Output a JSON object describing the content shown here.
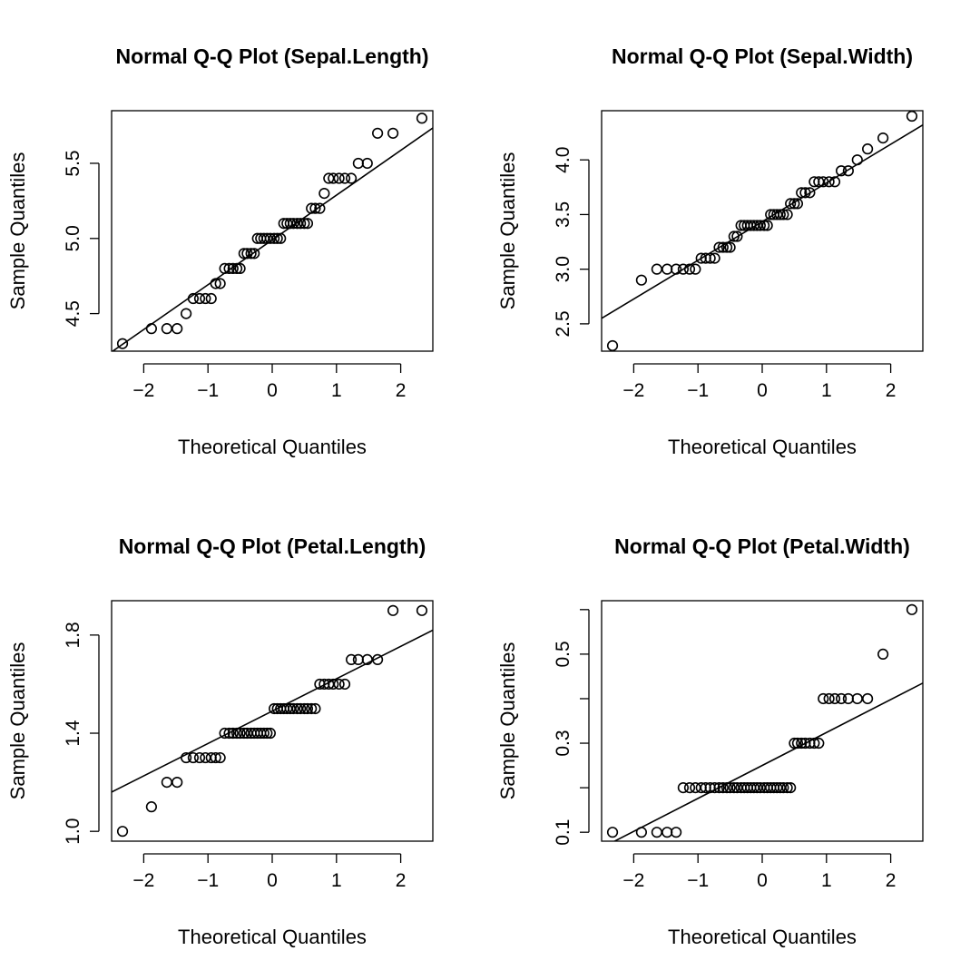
{
  "chart_data": [
    {
      "type": "scatter",
      "title": "Normal Q-Q Plot (Sepal.Length)",
      "xlabel": "Theoretical Quantiles",
      "ylabel": "Sample Quantiles",
      "xlim": [
        -2.5,
        2.5
      ],
      "ylim": [
        4.25,
        5.85
      ],
      "xticks": [
        -2,
        -1,
        0,
        1,
        2
      ],
      "xtick_labels": [
        "−2",
        "−1",
        "0",
        "1",
        "2"
      ],
      "yticks": [
        4.5,
        5.0,
        5.5
      ],
      "ytick_labels": [
        "4.5",
        "5.0",
        "5.5"
      ],
      "series": [
        {
          "x": [
            -2.33,
            -1.88,
            -1.64,
            -1.48,
            -1.34,
            -1.23,
            -1.13,
            -1.04,
            -0.95,
            -0.88,
            -0.81,
            -0.74,
            -0.67,
            -0.61,
            -0.55,
            -0.5,
            -0.44,
            -0.39,
            -0.33,
            -0.28,
            -0.23,
            -0.18,
            -0.13,
            -0.08,
            -0.03,
            0.03,
            0.08,
            0.13,
            0.18,
            0.23,
            0.28,
            0.33,
            0.39,
            0.44,
            0.5,
            0.55,
            0.61,
            0.67,
            0.74,
            0.81,
            0.88,
            0.95,
            1.04,
            1.13,
            1.23,
            1.34,
            1.48,
            1.64,
            1.88,
            2.33
          ],
          "y": [
            4.3,
            4.4,
            4.4,
            4.4,
            4.5,
            4.6,
            4.6,
            4.6,
            4.6,
            4.7,
            4.7,
            4.8,
            4.8,
            4.8,
            4.8,
            4.8,
            4.9,
            4.9,
            4.9,
            4.9,
            5.0,
            5.0,
            5.0,
            5.0,
            5.0,
            5.0,
            5.0,
            5.0,
            5.1,
            5.1,
            5.1,
            5.1,
            5.1,
            5.1,
            5.1,
            5.1,
            5.2,
            5.2,
            5.2,
            5.3,
            5.4,
            5.4,
            5.4,
            5.4,
            5.4,
            5.5,
            5.5,
            5.7,
            5.7,
            5.8
          ]
        }
      ],
      "reference_line": {
        "x": [
          -2.5,
          2.5
        ],
        "y": [
          4.245,
          5.735
        ]
      }
    },
    {
      "type": "scatter",
      "title": "Normal Q-Q Plot (Sepal.Width)",
      "xlabel": "Theoretical Quantiles",
      "ylabel": "Sample Quantiles",
      "xlim": [
        -2.5,
        2.5
      ],
      "ylim": [
        2.25,
        4.45
      ],
      "xticks": [
        -2,
        -1,
        0,
        1,
        2
      ],
      "xtick_labels": [
        "−2",
        "−1",
        "0",
        "1",
        "2"
      ],
      "yticks": [
        2.5,
        3.0,
        3.5,
        4.0
      ],
      "ytick_labels": [
        "2.5",
        "3.0",
        "3.5",
        "4.0"
      ],
      "series": [
        {
          "x": [
            -2.33,
            -1.88,
            -1.64,
            -1.48,
            -1.34,
            -1.23,
            -1.13,
            -1.04,
            -0.95,
            -0.88,
            -0.81,
            -0.74,
            -0.67,
            -0.61,
            -0.55,
            -0.5,
            -0.44,
            -0.39,
            -0.33,
            -0.28,
            -0.23,
            -0.18,
            -0.13,
            -0.08,
            -0.03,
            0.03,
            0.08,
            0.13,
            0.18,
            0.23,
            0.28,
            0.33,
            0.39,
            0.44,
            0.5,
            0.55,
            0.61,
            0.67,
            0.74,
            0.81,
            0.88,
            0.95,
            1.04,
            1.13,
            1.23,
            1.34,
            1.48,
            1.64,
            1.88,
            2.33
          ],
          "y": [
            2.3,
            2.9,
            3.0,
            3.0,
            3.0,
            3.0,
            3.0,
            3.0,
            3.1,
            3.1,
            3.1,
            3.1,
            3.2,
            3.2,
            3.2,
            3.2,
            3.3,
            3.3,
            3.4,
            3.4,
            3.4,
            3.4,
            3.4,
            3.4,
            3.4,
            3.4,
            3.4,
            3.5,
            3.5,
            3.5,
            3.5,
            3.5,
            3.5,
            3.6,
            3.6,
            3.6,
            3.7,
            3.7,
            3.7,
            3.8,
            3.8,
            3.8,
            3.8,
            3.8,
            3.9,
            3.9,
            4.0,
            4.1,
            4.2,
            4.4
          ]
        }
      ],
      "reference_line": {
        "x": [
          -2.5,
          2.5
        ],
        "y": [
          2.55,
          4.32
        ]
      }
    },
    {
      "type": "scatter",
      "title": "Normal Q-Q Plot (Petal.Length)",
      "xlabel": "Theoretical Quantiles",
      "ylabel": "Sample Quantiles",
      "xlim": [
        -2.5,
        2.5
      ],
      "ylim": [
        0.96,
        1.94
      ],
      "xticks": [
        -2,
        -1,
        0,
        1,
        2
      ],
      "xtick_labels": [
        "−2",
        "−1",
        "0",
        "1",
        "2"
      ],
      "yticks": [
        1.0,
        1.4,
        1.8
      ],
      "ytick_labels": [
        "1.0",
        "1.4",
        "1.8"
      ],
      "series": [
        {
          "x": [
            -2.33,
            -1.88,
            -1.64,
            -1.48,
            -1.34,
            -1.23,
            -1.13,
            -1.04,
            -0.95,
            -0.88,
            -0.81,
            -0.74,
            -0.67,
            -0.61,
            -0.55,
            -0.5,
            -0.44,
            -0.39,
            -0.33,
            -0.28,
            -0.23,
            -0.18,
            -0.13,
            -0.08,
            -0.03,
            0.03,
            0.08,
            0.13,
            0.18,
            0.23,
            0.28,
            0.33,
            0.39,
            0.44,
            0.5,
            0.55,
            0.61,
            0.67,
            0.74,
            0.81,
            0.88,
            0.95,
            1.04,
            1.13,
            1.23,
            1.34,
            1.48,
            1.64,
            1.88,
            2.33
          ],
          "y": [
            1.0,
            1.1,
            1.2,
            1.2,
            1.3,
            1.3,
            1.3,
            1.3,
            1.3,
            1.3,
            1.3,
            1.4,
            1.4,
            1.4,
            1.4,
            1.4,
            1.4,
            1.4,
            1.4,
            1.4,
            1.4,
            1.4,
            1.4,
            1.4,
            1.4,
            1.5,
            1.5,
            1.5,
            1.5,
            1.5,
            1.5,
            1.5,
            1.5,
            1.5,
            1.5,
            1.5,
            1.5,
            1.5,
            1.6,
            1.6,
            1.6,
            1.6,
            1.6,
            1.6,
            1.7,
            1.7,
            1.7,
            1.7,
            1.9,
            1.9
          ]
        }
      ],
      "reference_line": {
        "x": [
          -2.5,
          2.5
        ],
        "y": [
          1.16,
          1.82
        ]
      }
    },
    {
      "type": "scatter",
      "title": "Normal Q-Q Plot (Petal.Width)",
      "xlabel": "Theoretical Quantiles",
      "ylabel": "Sample Quantiles",
      "xlim": [
        -2.5,
        2.5
      ],
      "ylim": [
        0.08,
        0.62
      ],
      "xticks": [
        -2,
        -1,
        0,
        1,
        2
      ],
      "xtick_labels": [
        "−2",
        "−1",
        "0",
        "1",
        "2"
      ],
      "yticks": [
        0.1,
        0.2,
        0.3,
        0.4,
        0.5,
        0.6
      ],
      "ytick_labels": [
        "0.1",
        "",
        "0.3",
        "",
        "0.5",
        ""
      ],
      "series": [
        {
          "x": [
            -2.33,
            -1.88,
            -1.64,
            -1.48,
            -1.34,
            -1.23,
            -1.13,
            -1.04,
            -0.95,
            -0.88,
            -0.81,
            -0.74,
            -0.67,
            -0.61,
            -0.55,
            -0.5,
            -0.44,
            -0.39,
            -0.33,
            -0.28,
            -0.23,
            -0.18,
            -0.13,
            -0.08,
            -0.03,
            0.03,
            0.08,
            0.13,
            0.18,
            0.23,
            0.28,
            0.33,
            0.39,
            0.44,
            0.5,
            0.55,
            0.61,
            0.67,
            0.74,
            0.81,
            0.88,
            0.95,
            1.04,
            1.13,
            1.23,
            1.34,
            1.48,
            1.64,
            1.88,
            2.33
          ],
          "y": [
            0.1,
            0.1,
            0.1,
            0.1,
            0.1,
            0.2,
            0.2,
            0.2,
            0.2,
            0.2,
            0.2,
            0.2,
            0.2,
            0.2,
            0.2,
            0.2,
            0.2,
            0.2,
            0.2,
            0.2,
            0.2,
            0.2,
            0.2,
            0.2,
            0.2,
            0.2,
            0.2,
            0.2,
            0.2,
            0.2,
            0.2,
            0.2,
            0.2,
            0.2,
            0.3,
            0.3,
            0.3,
            0.3,
            0.3,
            0.3,
            0.3,
            0.4,
            0.4,
            0.4,
            0.4,
            0.4,
            0.4,
            0.4,
            0.5,
            0.6
          ]
        }
      ],
      "reference_line": {
        "x": [
          -2.5,
          2.5
        ],
        "y": [
          0.065,
          0.435
        ]
      }
    }
  ]
}
